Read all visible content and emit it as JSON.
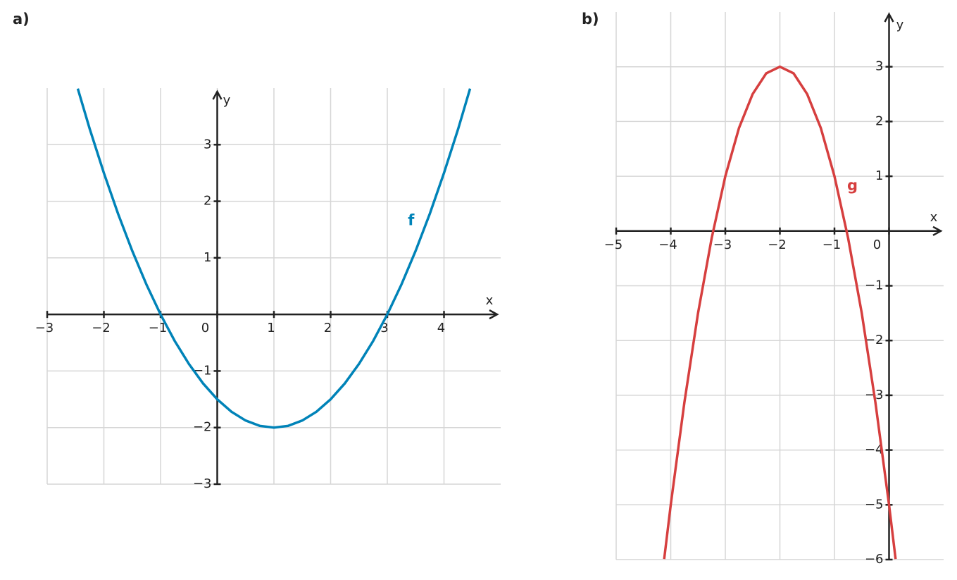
{
  "chart_data": [
    {
      "type": "line",
      "panel_label": "a)",
      "x_label": "x",
      "y_label": "y",
      "xlim": [
        -3,
        5
      ],
      "ylim": [
        -3,
        4
      ],
      "grid": true,
      "xticks": [
        {
          "value": -3,
          "label": "−3"
        },
        {
          "value": -2,
          "label": "−2"
        },
        {
          "value": -1,
          "label": "−1"
        },
        0,
        1,
        2,
        3,
        4
      ],
      "yticks": [
        {
          "value": -3,
          "label": "−3"
        },
        {
          "value": -2,
          "label": "−2"
        },
        {
          "value": -1,
          "label": "−1"
        },
        1,
        2,
        3
      ],
      "x": [
        -2.46,
        -2.25,
        -2,
        -1.75,
        -1.5,
        -1.25,
        -1,
        -0.75,
        -0.5,
        -0.25,
        0,
        0.25,
        0.5,
        0.75,
        1,
        1.25,
        1.5,
        1.75,
        2,
        2.25,
        2.5,
        2.75,
        3,
        3.25,
        3.5,
        3.75,
        4,
        4.25,
        4.46
      ],
      "series": [
        {
          "name": "f",
          "color": "#0083b8",
          "values": [
            3.99,
            3.28,
            2.5,
            1.78,
            1.125,
            0.53,
            0,
            -0.47,
            -0.875,
            -1.22,
            -1.5,
            -1.72,
            -1.875,
            -1.97,
            -2,
            -1.97,
            -1.875,
            -1.72,
            -1.5,
            -1.22,
            -0.875,
            -0.47,
            0,
            0.53,
            1.125,
            1.78,
            2.5,
            3.28,
            3.99
          ]
        }
      ]
    },
    {
      "type": "line",
      "panel_label": "b)",
      "x_label": "x",
      "y_label": "y",
      "xlim": [
        -5,
        1
      ],
      "ylim": [
        -6,
        4
      ],
      "grid": true,
      "xticks": [
        {
          "value": -5,
          "label": "−5"
        },
        {
          "value": -4,
          "label": "−4"
        },
        {
          "value": -3,
          "label": "−3"
        },
        {
          "value": -2,
          "label": "−2"
        },
        {
          "value": -1,
          "label": "−1"
        },
        0
      ],
      "yticks": [
        {
          "value": -6,
          "label": "−6"
        },
        {
          "value": -5,
          "label": "−5"
        },
        {
          "value": -4,
          "label": "−4"
        },
        {
          "value": -3,
          "label": "−3"
        },
        {
          "value": -2,
          "label": "−2"
        },
        {
          "value": -1,
          "label": "−1"
        },
        1,
        2,
        3
      ],
      "x": [
        -4.12,
        -4,
        -3.75,
        -3.5,
        -3.25,
        -3,
        -2.75,
        -2.5,
        -2.25,
        -2,
        -1.75,
        -1.5,
        -1.25,
        -1,
        -0.75,
        -0.5,
        -0.25,
        0,
        0.12
      ],
      "series": [
        {
          "name": "g",
          "color": "#d63f3f",
          "values": [
            -5.99,
            -5,
            -3.13,
            -1.5,
            -0.13,
            1,
            1.88,
            2.5,
            2.88,
            3,
            2.88,
            2.5,
            1.88,
            1,
            -0.13,
            -1.5,
            -3.13,
            -5,
            -5.99
          ]
        }
      ]
    }
  ]
}
